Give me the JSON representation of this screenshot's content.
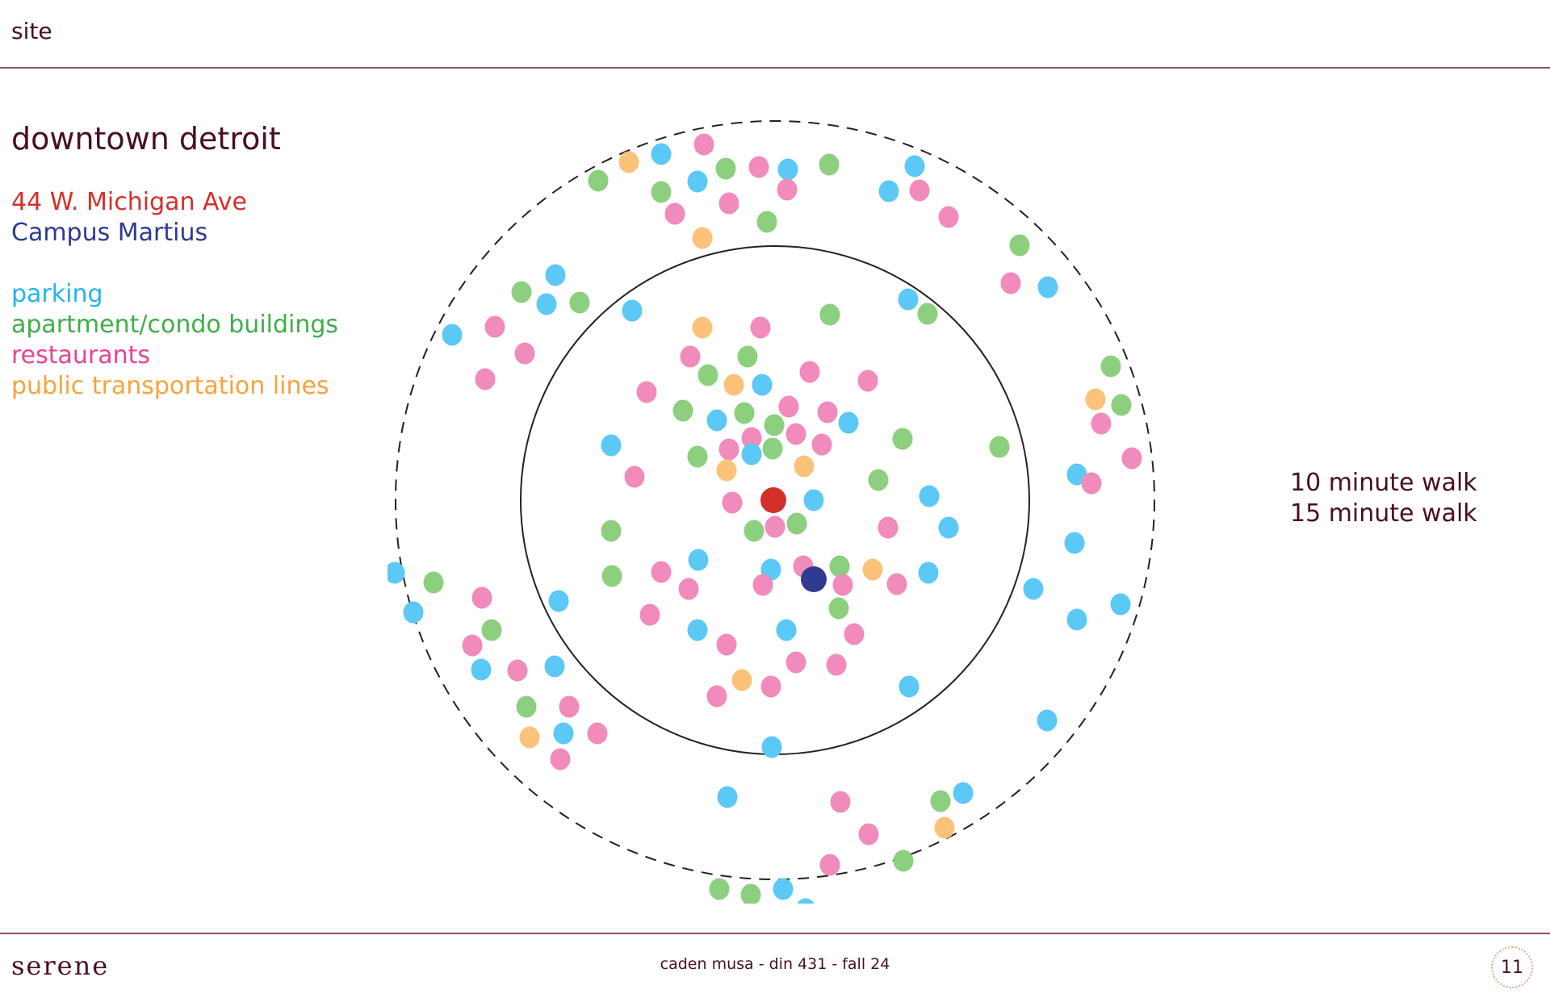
{
  "header": {
    "title": "site"
  },
  "legend": {
    "area_title": "downtown detroit",
    "site_address": {
      "text": "44 W. Michigan Ave",
      "color": "#d4302b"
    },
    "landmark": {
      "text": "Campus Martius",
      "color": "#2e3b8f"
    },
    "categories": [
      {
        "text": "parking",
        "color": "#5bc8f5"
      },
      {
        "text": "apartment/condo buildings",
        "color": "#8ccf7e"
      },
      {
        "text": "restaurants",
        "color": "#f08bbb"
      },
      {
        "text": "public transportation lines",
        "color": "#fcc27a"
      }
    ]
  },
  "walk_legend": {
    "inner": "10 minute walk",
    "outer": "15 minute walk"
  },
  "footer": {
    "brand": "serene",
    "credit": "caden musa - din 431 - fall 24",
    "page_number": "11"
  }
}
